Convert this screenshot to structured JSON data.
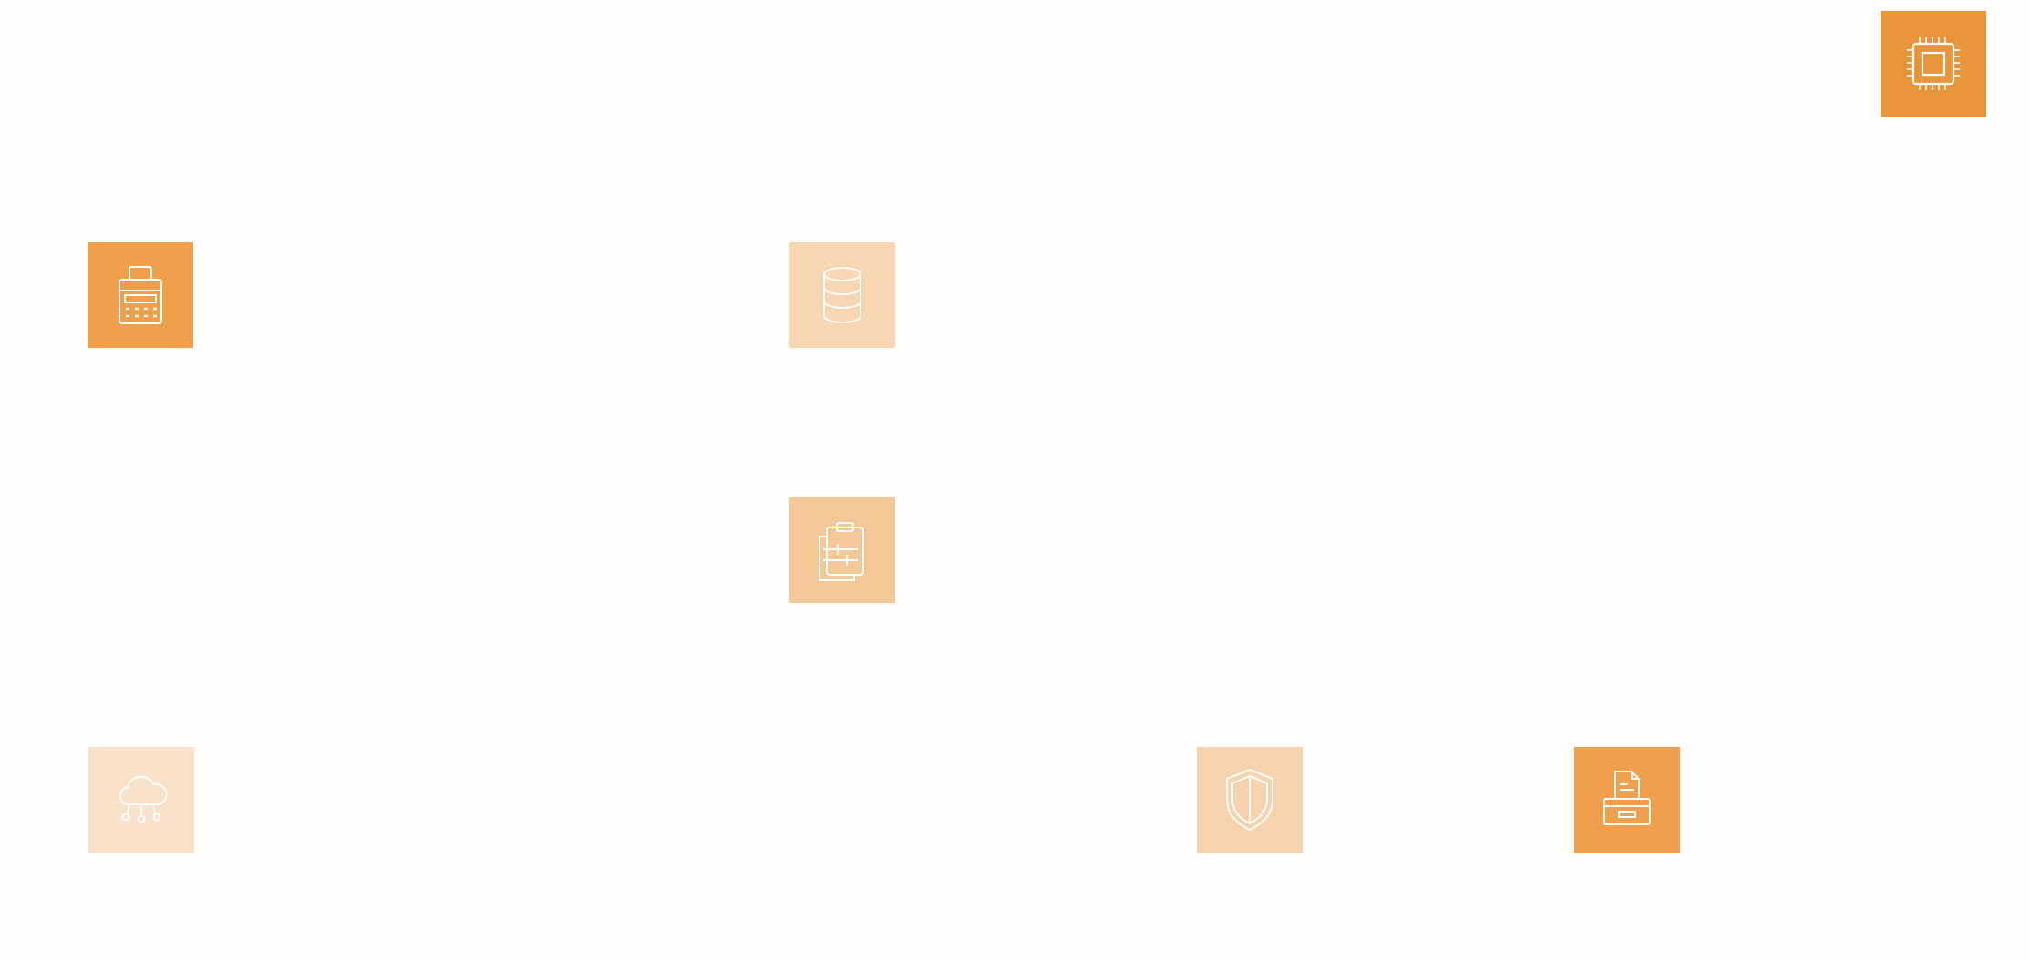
{
  "diagram": {
    "nodes": [
      {
        "id": "chip",
        "icon": "cpu-chip-icon",
        "fill": "#e8953a",
        "opacity": 1.0
      },
      {
        "id": "calc",
        "icon": "calculator-icon",
        "fill": "#ef9f4a",
        "opacity": 1.0
      },
      {
        "id": "db",
        "icon": "database-icon",
        "fill": "#f7d6b1",
        "opacity": 1.0
      },
      {
        "id": "clip",
        "icon": "clipboard-icon",
        "fill": "#f3c796",
        "opacity": 1.0
      },
      {
        "id": "cloud",
        "icon": "cloud-rain-icon",
        "fill": "#f9e2c9",
        "opacity": 1.0
      },
      {
        "id": "shield",
        "icon": "shield-icon",
        "fill": "#f6d3ac",
        "opacity": 1.0
      },
      {
        "id": "archive",
        "icon": "file-archive-icon",
        "fill": "#f0a04c",
        "opacity": 1.0
      }
    ]
  }
}
